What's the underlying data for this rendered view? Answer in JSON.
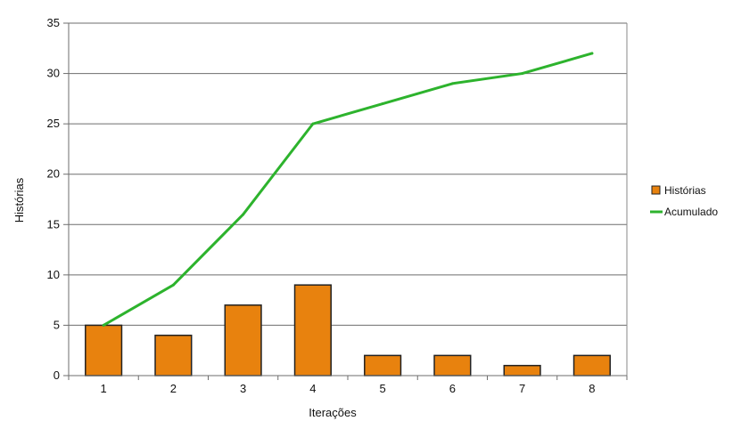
{
  "chart_data": {
    "type": "bar",
    "categories": [
      "1",
      "2",
      "3",
      "4",
      "5",
      "6",
      "7",
      "8"
    ],
    "series": [
      {
        "name": "Histórias",
        "kind": "bar",
        "color": "#e8820e",
        "values": [
          5,
          4,
          7,
          9,
          2,
          2,
          1,
          2
        ]
      },
      {
        "name": "Acumulado",
        "kind": "line",
        "color": "#2db32d",
        "values": [
          5,
          9,
          16,
          25,
          27,
          29,
          30,
          32
        ]
      }
    ],
    "xlabel": "Iterações",
    "ylabel": "Histórias",
    "ylim": [
      0,
      35
    ],
    "yticks": [
      "0",
      "5",
      "10",
      "15",
      "20",
      "25",
      "30",
      "35"
    ],
    "grid": true,
    "legend": "right"
  }
}
